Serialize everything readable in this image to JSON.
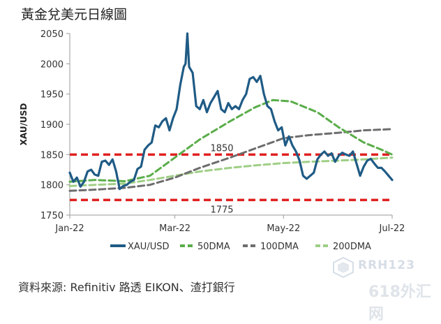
{
  "title": "黃金兌美元日線圖",
  "source": "資料來源: Refinitiv 路透 EIKON、渣打銀行",
  "watermark": {
    "top": "RRH123",
    "bottom": "618外汇网"
  },
  "colors": {
    "xau": "#1f5b85",
    "dma50": "#5aad4a",
    "dma100": "#6d6d6d",
    "dma200": "#9fcf86",
    "reference": "#e02020"
  },
  "chart_data": {
    "type": "line",
    "title": "黃金兌美元日線圖",
    "xlabel": "",
    "ylabel": "XAU/USD",
    "ylim": [
      1750,
      2050
    ],
    "yticks": [
      1750,
      1800,
      1850,
      1900,
      1950,
      2000,
      2050
    ],
    "xlim": [
      "2022-01-01",
      "2022-07-01"
    ],
    "xticks": [
      {
        "date": "2022-01-01",
        "label": "Jan-22"
      },
      {
        "date": "2022-03-01",
        "label": "Mar-22"
      },
      {
        "date": "2022-05-01",
        "label": "May-22"
      },
      {
        "date": "2022-07-01",
        "label": "Jul-22"
      }
    ],
    "grid": false,
    "legend": "bottom",
    "series": [
      {
        "name": "XAU/USD",
        "style": "solid",
        "points": [
          [
            "2022-01-01",
            1820
          ],
          [
            "2022-01-03",
            1805
          ],
          [
            "2022-01-05",
            1812
          ],
          [
            "2022-01-07",
            1797
          ],
          [
            "2022-01-09",
            1805
          ],
          [
            "2022-01-11",
            1822
          ],
          [
            "2022-01-13",
            1825
          ],
          [
            "2022-01-15",
            1817
          ],
          [
            "2022-01-17",
            1815
          ],
          [
            "2022-01-19",
            1838
          ],
          [
            "2022-01-21",
            1840
          ],
          [
            "2022-01-23",
            1833
          ],
          [
            "2022-01-25",
            1842
          ],
          [
            "2022-01-27",
            1822
          ],
          [
            "2022-01-29",
            1793
          ],
          [
            "2022-01-31",
            1798
          ],
          [
            "2022-02-02",
            1800
          ],
          [
            "2022-02-04",
            1805
          ],
          [
            "2022-02-06",
            1808
          ],
          [
            "2022-02-08",
            1826
          ],
          [
            "2022-02-10",
            1830
          ],
          [
            "2022-02-12",
            1858
          ],
          [
            "2022-02-14",
            1865
          ],
          [
            "2022-02-16",
            1870
          ],
          [
            "2022-02-18",
            1898
          ],
          [
            "2022-02-20",
            1895
          ],
          [
            "2022-02-22",
            1905
          ],
          [
            "2022-02-24",
            1910
          ],
          [
            "2022-02-26",
            1890
          ],
          [
            "2022-02-28",
            1910
          ],
          [
            "2022-03-02",
            1925
          ],
          [
            "2022-03-04",
            1965
          ],
          [
            "2022-03-06",
            1995
          ],
          [
            "2022-03-07",
            2000
          ],
          [
            "2022-03-08",
            2050
          ],
          [
            "2022-03-09",
            1995
          ],
          [
            "2022-03-11",
            1985
          ],
          [
            "2022-03-13",
            1930
          ],
          [
            "2022-03-15",
            1925
          ],
          [
            "2022-03-17",
            1940
          ],
          [
            "2022-03-19",
            1920
          ],
          [
            "2022-03-21",
            1935
          ],
          [
            "2022-03-23",
            1945
          ],
          [
            "2022-03-25",
            1955
          ],
          [
            "2022-03-27",
            1925
          ],
          [
            "2022-03-29",
            1920
          ],
          [
            "2022-03-31",
            1935
          ],
          [
            "2022-04-02",
            1925
          ],
          [
            "2022-04-04",
            1930
          ],
          [
            "2022-04-06",
            1925
          ],
          [
            "2022-04-08",
            1940
          ],
          [
            "2022-04-10",
            1950
          ],
          [
            "2022-04-12",
            1975
          ],
          [
            "2022-04-14",
            1978
          ],
          [
            "2022-04-16",
            1970
          ],
          [
            "2022-04-18",
            1980
          ],
          [
            "2022-04-20",
            1950
          ],
          [
            "2022-04-22",
            1930
          ],
          [
            "2022-04-24",
            1925
          ],
          [
            "2022-04-26",
            1905
          ],
          [
            "2022-04-28",
            1890
          ],
          [
            "2022-04-30",
            1895
          ],
          [
            "2022-05-02",
            1865
          ],
          [
            "2022-05-04",
            1880
          ],
          [
            "2022-05-06",
            1865
          ],
          [
            "2022-05-08",
            1855
          ],
          [
            "2022-05-10",
            1840
          ],
          [
            "2022-05-12",
            1815
          ],
          [
            "2022-05-14",
            1810
          ],
          [
            "2022-05-16",
            1815
          ],
          [
            "2022-05-18",
            1820
          ],
          [
            "2022-05-20",
            1842
          ],
          [
            "2022-05-22",
            1850
          ],
          [
            "2022-05-24",
            1855
          ],
          [
            "2022-05-26",
            1848
          ],
          [
            "2022-05-28",
            1852
          ],
          [
            "2022-05-30",
            1838
          ],
          [
            "2022-06-01",
            1848
          ],
          [
            "2022-06-03",
            1853
          ],
          [
            "2022-06-05",
            1850
          ],
          [
            "2022-06-07",
            1848
          ],
          [
            "2022-06-09",
            1855
          ],
          [
            "2022-06-11",
            1835
          ],
          [
            "2022-06-13",
            1815
          ],
          [
            "2022-06-15",
            1830
          ],
          [
            "2022-06-17",
            1840
          ],
          [
            "2022-06-19",
            1843
          ],
          [
            "2022-06-21",
            1835
          ],
          [
            "2022-06-23",
            1828
          ],
          [
            "2022-06-25",
            1828
          ],
          [
            "2022-06-27",
            1822
          ],
          [
            "2022-06-29",
            1815
          ],
          [
            "2022-07-01",
            1808
          ]
        ]
      },
      {
        "name": "50DMA",
        "style": "dashed",
        "points": [
          [
            "2022-01-01",
            1805
          ],
          [
            "2022-01-15",
            1808
          ],
          [
            "2022-02-01",
            1806
          ],
          [
            "2022-02-15",
            1815
          ],
          [
            "2022-03-01",
            1845
          ],
          [
            "2022-03-15",
            1875
          ],
          [
            "2022-04-01",
            1905
          ],
          [
            "2022-04-15",
            1928
          ],
          [
            "2022-04-25",
            1940
          ],
          [
            "2022-05-05",
            1938
          ],
          [
            "2022-05-20",
            1920
          ],
          [
            "2022-06-01",
            1895
          ],
          [
            "2022-06-15",
            1870
          ],
          [
            "2022-06-25",
            1858
          ],
          [
            "2022-07-01",
            1850
          ]
        ]
      },
      {
        "name": "100DMA",
        "style": "dashed",
        "points": [
          [
            "2022-01-01",
            1790
          ],
          [
            "2022-01-15",
            1792
          ],
          [
            "2022-02-01",
            1795
          ],
          [
            "2022-02-15",
            1800
          ],
          [
            "2022-03-01",
            1812
          ],
          [
            "2022-03-15",
            1828
          ],
          [
            "2022-04-01",
            1845
          ],
          [
            "2022-04-15",
            1860
          ],
          [
            "2022-05-01",
            1877
          ],
          [
            "2022-05-15",
            1882
          ],
          [
            "2022-06-01",
            1886
          ],
          [
            "2022-06-15",
            1890
          ],
          [
            "2022-07-01",
            1892
          ]
        ]
      },
      {
        "name": "200DMA",
        "style": "dashed",
        "points": [
          [
            "2022-01-01",
            1798
          ],
          [
            "2022-01-15",
            1800
          ],
          [
            "2022-02-01",
            1802
          ],
          [
            "2022-02-15",
            1808
          ],
          [
            "2022-03-01",
            1815
          ],
          [
            "2022-03-15",
            1822
          ],
          [
            "2022-04-01",
            1828
          ],
          [
            "2022-04-15",
            1832
          ],
          [
            "2022-05-01",
            1836
          ],
          [
            "2022-05-15",
            1838
          ],
          [
            "2022-06-01",
            1840
          ],
          [
            "2022-06-15",
            1842
          ],
          [
            "2022-07-01",
            1845
          ]
        ]
      }
    ],
    "reference_lines": [
      {
        "value": 1850,
        "label": "1850"
      },
      {
        "value": 1775,
        "label": "1775"
      }
    ]
  }
}
